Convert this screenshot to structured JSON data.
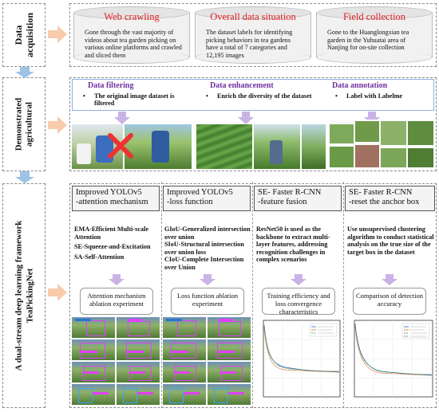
{
  "stages": [
    {
      "label": "Data\nacquisition"
    },
    {
      "label": "Demonstrated\nagricultural"
    },
    {
      "label": "A dual-stream deep learning framework\nTeaPickingNet"
    }
  ],
  "acquisition": [
    {
      "title": "Web crawling",
      "text": "Gone through the vast majority of videos about tea garden picking on various online platforms and crawled and sliced them"
    },
    {
      "title": "Overall data situation",
      "text": "The dataset labels for identifying picking behaviors in tea gardens have a total of 7 categories and 12,195 images"
    },
    {
      "title": "Field collection",
      "text": "Gone to the Huanglongxian tea garden in the Yuhuatai area of Nanjing for on-site collection"
    }
  ],
  "processing": [
    {
      "title": "Data filtering",
      "bullet": "The original image dataset is filtered"
    },
    {
      "title": "Data enhancement",
      "bullet": "Enrich the diversity of the dataset"
    },
    {
      "title": "Data annotation",
      "bullet": "Label with Labelme"
    }
  ],
  "framework": [
    {
      "head": "Improved YOLOv5\n-attention mechanism",
      "lines": [
        "EMA-Efficient Multi-scale Attention",
        "SE-Squeeze-and-Excitation",
        "SA-Self-Attention"
      ],
      "result": "Attention mechanism ablation experiment"
    },
    {
      "head": "Improved YOLOv5\n-loss function",
      "lines": [
        "GIoU-Generalized intersection over union",
        "SIoU-Structural intersection over union loss",
        "CIoU-Complete Intersection over Union"
      ],
      "result": "Loss function ablation experiment"
    },
    {
      "head": "SE- Faster R-CNN\n-feature fusion",
      "lines": [
        "ResNet50 is used as the backbone to extract multi-layer features, addressing recognition challenges in complex scenarios"
      ],
      "result": "Training efficiency and loss convergence characteristics"
    },
    {
      "head": "SE- Faster R-CNN\n-reset the anchor box",
      "lines": [
        "Use unsupervised clustering algorithm to conduct statistical analysis on the true size of the target box in the dataset"
      ],
      "result": "Comparison of detection accuracy"
    }
  ],
  "colors": {
    "arrow_orange": "#f8cbad",
    "arrow_blue": "#9dc3e6",
    "arrow_purple": "#c9b3e6",
    "title_red": "#e02020",
    "subtitle_purple": "#7030a0"
  }
}
